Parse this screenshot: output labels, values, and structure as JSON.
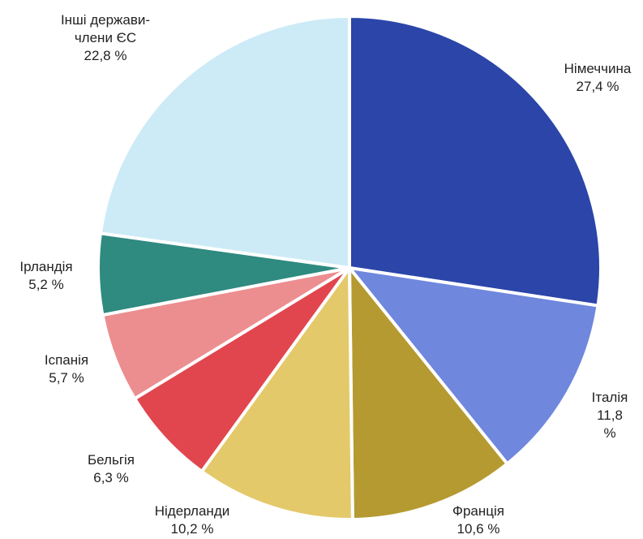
{
  "chart_data": {
    "type": "pie",
    "categories": [
      "Німеччина",
      "Італія",
      "Франція",
      "Нідерланди",
      "Бельгія",
      "Іспанія",
      "Ірландія",
      "Інші держави-\nчлени ЄС"
    ],
    "values": [
      27.4,
      11.8,
      10.6,
      10.2,
      6.3,
      5.7,
      5.2,
      22.8
    ],
    "value_labels": [
      "27,4 %",
      "11,8 %",
      "10,6 %",
      "10,2 %",
      "6,3 %",
      "5,7 %",
      "5,2 %",
      "22,8 %"
    ],
    "colors": [
      "#2b45a9",
      "#6f87dd",
      "#b59a31",
      "#e4c96b",
      "#e1464e",
      "#ec8e90",
      "#2f8a80",
      "#cdebf7"
    ]
  }
}
